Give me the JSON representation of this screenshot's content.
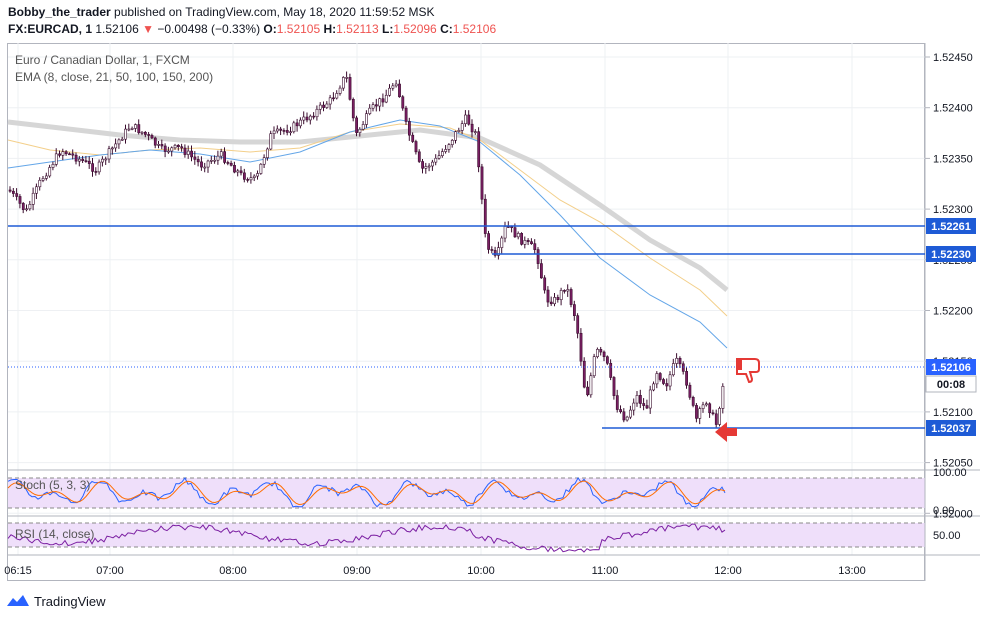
{
  "header": {
    "author": "Bobby_the_trader",
    "published_text": "published on TradingView.com, May 18, 2020 11:59:52 MSK"
  },
  "symbol_line": {
    "symbol": "FX:EURCAD, 1",
    "last": "1.52106",
    "change": "−0.00498 (−0.33%)",
    "open_label": "O:",
    "open": "1.52105",
    "high_label": "H:",
    "high": "1.52113",
    "low_label": "L:",
    "low": "1.52096",
    "close_label": "C:",
    "close": "1.52106"
  },
  "legend": {
    "title": "Euro / Canadian Dollar, 1, FXCM",
    "ema": "EMA (8, close, 21, 50, 100, 150, 200)",
    "stoch": "Stoch (5, 3, 3)",
    "rsi": "RSI (14, close)"
  },
  "price_axis": {
    "ticks": [
      "1.52450",
      "1.52400",
      "1.52350",
      "1.52300",
      "1.52250",
      "1.52200",
      "1.52150",
      "1.52100",
      "1.52050",
      "1.52000"
    ],
    "badges": [
      {
        "label": "1.52261",
        "color": "#1e5bd6"
      },
      {
        "label": "1.52230",
        "color": "#1e5bd6"
      },
      {
        "label": "1.52106",
        "color": "#2962ff"
      },
      {
        "label": "00:08",
        "color": "#ffffff"
      },
      {
        "label": "1.52037",
        "color": "#1e5bd6"
      }
    ]
  },
  "stoch_axis": {
    "ticks": [
      "100.00",
      "0.00"
    ]
  },
  "rsi_axis": {
    "ticks": [
      "50.00"
    ]
  },
  "time_axis": {
    "ticks": [
      "06:15",
      "07:00",
      "08:00",
      "09:00",
      "10:00",
      "11:00",
      "12:00",
      "13:00"
    ]
  },
  "footer": {
    "brand": "TradingView"
  },
  "icons": {
    "sell_signal": "thumbs-down-icon",
    "entry_arrow": "left-arrow-icon"
  },
  "colors": {
    "horizontal_line": "#1e5bd6",
    "candle_up": "#ffffff",
    "candle_down": "#7a1f63",
    "ema_fast": "#64a6e8",
    "ema_mid": "#f3cf8a",
    "ema_slow": "#cfcfcf",
    "signal": "#e53935"
  }
}
